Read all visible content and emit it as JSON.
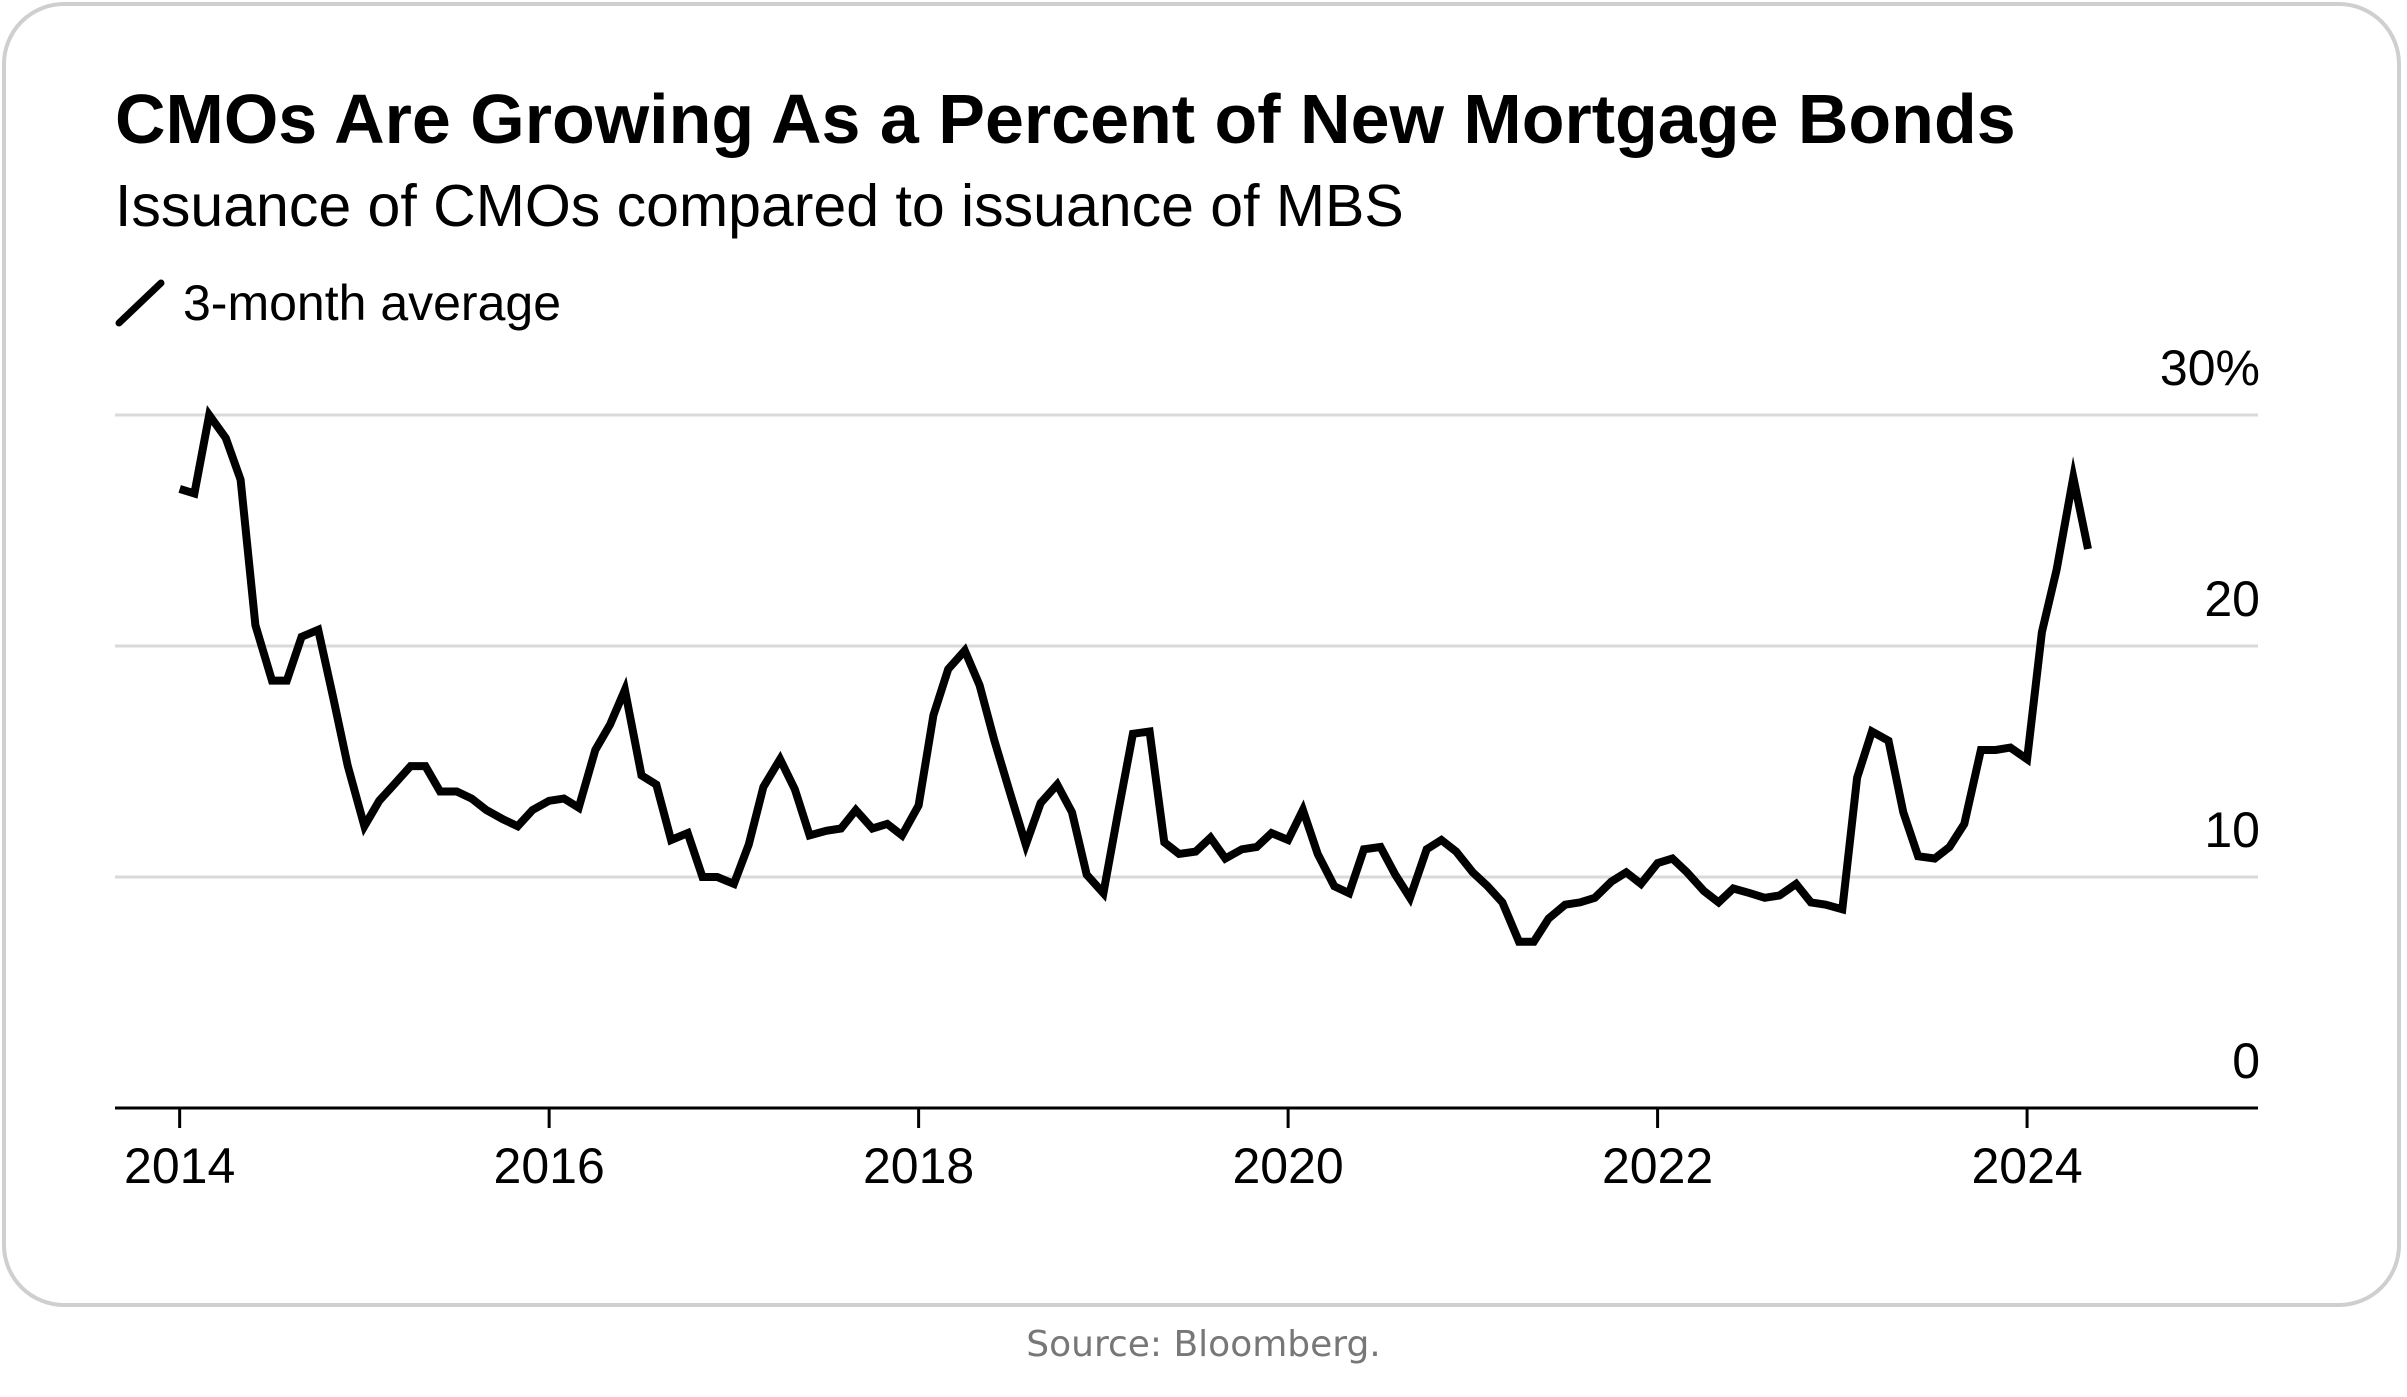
{
  "chart_data": {
    "type": "line",
    "title": "CMOs Are Growing As a Percent of New Mortgage Bonds",
    "subtitle": "Issuance of CMOs compared to issuance of MBS",
    "xlabel": "",
    "ylabel": "",
    "x_ticks": [
      "2014",
      "2016",
      "2018",
      "2020",
      "2022",
      "2024"
    ],
    "y_ticks": [
      "0",
      "10",
      "20",
      "30%"
    ],
    "xlim": [
      2013.65,
      2025.25
    ],
    "ylim": [
      0,
      30
    ],
    "grid": true,
    "legend_position": "top-left",
    "series": [
      {
        "name": "3-month average",
        "color": "#000000",
        "points": [
          [
            2014.0,
            26.8
          ],
          [
            2014.08,
            26.6
          ],
          [
            2014.16,
            30.0
          ],
          [
            2014.25,
            29.0
          ],
          [
            2014.33,
            27.2
          ],
          [
            2014.41,
            20.9
          ],
          [
            2014.5,
            18.5
          ],
          [
            2014.58,
            18.5
          ],
          [
            2014.66,
            20.4
          ],
          [
            2014.75,
            20.7
          ],
          [
            2014.83,
            17.8
          ],
          [
            2014.91,
            14.8
          ],
          [
            2015.0,
            12.2
          ],
          [
            2015.08,
            13.3
          ],
          [
            2015.16,
            14.0
          ],
          [
            2015.25,
            14.8
          ],
          [
            2015.33,
            14.8
          ],
          [
            2015.41,
            13.7
          ],
          [
            2015.5,
            13.7
          ],
          [
            2015.58,
            13.4
          ],
          [
            2015.66,
            12.9
          ],
          [
            2015.75,
            12.5
          ],
          [
            2015.83,
            12.2
          ],
          [
            2015.91,
            12.9
          ],
          [
            2016.0,
            13.3
          ],
          [
            2016.08,
            13.4
          ],
          [
            2016.16,
            13.0
          ],
          [
            2016.25,
            15.5
          ],
          [
            2016.33,
            16.6
          ],
          [
            2016.41,
            18.1
          ],
          [
            2016.5,
            14.4
          ],
          [
            2016.58,
            14.0
          ],
          [
            2016.66,
            11.6
          ],
          [
            2016.75,
            11.9
          ],
          [
            2016.83,
            10.0
          ],
          [
            2016.91,
            10.0
          ],
          [
            2017.0,
            9.7
          ],
          [
            2017.08,
            11.4
          ],
          [
            2017.16,
            13.9
          ],
          [
            2017.25,
            15.1
          ],
          [
            2017.33,
            13.8
          ],
          [
            2017.41,
            11.8
          ],
          [
            2017.5,
            12.0
          ],
          [
            2017.58,
            12.1
          ],
          [
            2017.66,
            12.9
          ],
          [
            2017.75,
            12.1
          ],
          [
            2017.83,
            12.3
          ],
          [
            2017.91,
            11.8
          ],
          [
            2018.0,
            13.1
          ],
          [
            2018.08,
            17.0
          ],
          [
            2018.16,
            19.0
          ],
          [
            2018.25,
            19.8
          ],
          [
            2018.33,
            18.3
          ],
          [
            2018.41,
            15.9
          ],
          [
            2018.5,
            13.5
          ],
          [
            2018.58,
            11.4
          ],
          [
            2018.66,
            13.2
          ],
          [
            2018.75,
            14.0
          ],
          [
            2018.83,
            12.8
          ],
          [
            2018.91,
            10.1
          ],
          [
            2019.0,
            9.3
          ],
          [
            2019.08,
            12.8
          ],
          [
            2019.16,
            16.2
          ],
          [
            2019.25,
            16.3
          ],
          [
            2019.33,
            11.5
          ],
          [
            2019.41,
            11.0
          ],
          [
            2019.5,
            11.1
          ],
          [
            2019.58,
            11.7
          ],
          [
            2019.66,
            10.8
          ],
          [
            2019.75,
            11.2
          ],
          [
            2019.83,
            11.3
          ],
          [
            2019.91,
            11.9
          ],
          [
            2020.0,
            11.6
          ],
          [
            2020.08,
            12.9
          ],
          [
            2020.16,
            11.0
          ],
          [
            2020.25,
            9.6
          ],
          [
            2020.33,
            9.3
          ],
          [
            2020.41,
            11.2
          ],
          [
            2020.5,
            11.3
          ],
          [
            2020.58,
            10.1
          ],
          [
            2020.66,
            9.1
          ],
          [
            2020.75,
            11.2
          ],
          [
            2020.83,
            11.6
          ],
          [
            2020.91,
            11.1
          ],
          [
            2021.0,
            10.2
          ],
          [
            2021.08,
            9.6
          ],
          [
            2021.16,
            8.9
          ],
          [
            2021.25,
            7.2
          ],
          [
            2021.33,
            7.2
          ],
          [
            2021.41,
            8.2
          ],
          [
            2021.5,
            8.8
          ],
          [
            2021.58,
            8.9
          ],
          [
            2021.66,
            9.1
          ],
          [
            2021.75,
            9.8
          ],
          [
            2021.83,
            10.2
          ],
          [
            2021.91,
            9.7
          ],
          [
            2022.0,
            10.6
          ],
          [
            2022.08,
            10.8
          ],
          [
            2022.16,
            10.2
          ],
          [
            2022.25,
            9.4
          ],
          [
            2022.33,
            8.9
          ],
          [
            2022.41,
            9.5
          ],
          [
            2022.5,
            9.3
          ],
          [
            2022.58,
            9.1
          ],
          [
            2022.66,
            9.2
          ],
          [
            2022.75,
            9.7
          ],
          [
            2022.83,
            8.9
          ],
          [
            2022.91,
            8.8
          ],
          [
            2023.0,
            8.6
          ],
          [
            2023.08,
            14.3
          ],
          [
            2023.16,
            16.3
          ],
          [
            2023.25,
            15.9
          ],
          [
            2023.33,
            12.8
          ],
          [
            2023.41,
            10.9
          ],
          [
            2023.5,
            10.8
          ],
          [
            2023.58,
            11.3
          ],
          [
            2023.66,
            12.3
          ],
          [
            2023.75,
            15.5
          ],
          [
            2023.83,
            15.5
          ],
          [
            2023.91,
            15.6
          ],
          [
            2024.0,
            15.1
          ],
          [
            2024.08,
            20.6
          ],
          [
            2024.16,
            23.3
          ],
          [
            2024.25,
            27.3
          ],
          [
            2024.33,
            24.2
          ]
        ]
      }
    ]
  },
  "source": "Source: Bloomberg."
}
